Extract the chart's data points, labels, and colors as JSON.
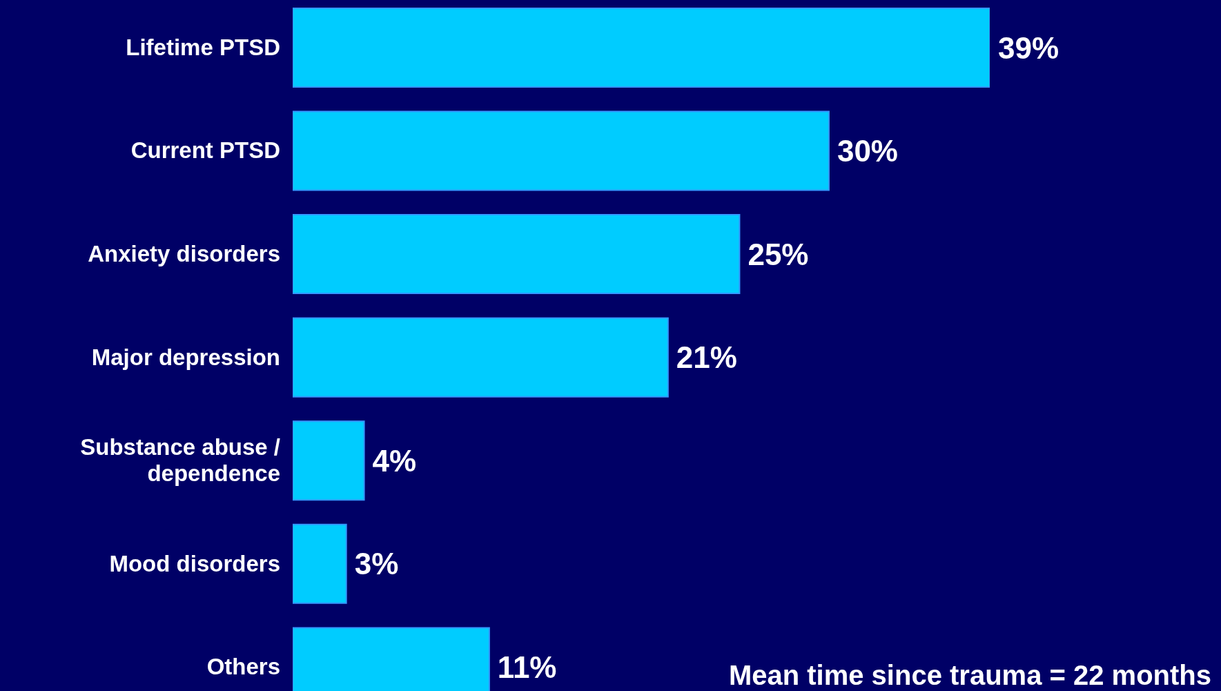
{
  "chart_data": {
    "type": "bar",
    "orientation": "horizontal",
    "categories": [
      "Lifetime PTSD",
      "Current PTSD",
      "Anxiety disorders",
      "Major depression",
      "Substance abuse / dependence",
      "Mood disorders",
      "Others"
    ],
    "values": [
      39,
      30,
      25,
      21,
      4,
      3,
      11
    ],
    "color": "#00ccff",
    "data_labels": true,
    "value_labels": [
      "39%",
      "30%",
      "25%",
      "21%",
      "4%",
      "3%",
      "11%"
    ],
    "annotations": [
      "Mean time since trauma = 22 months"
    ],
    "grid": false,
    "legend": false
  }
}
